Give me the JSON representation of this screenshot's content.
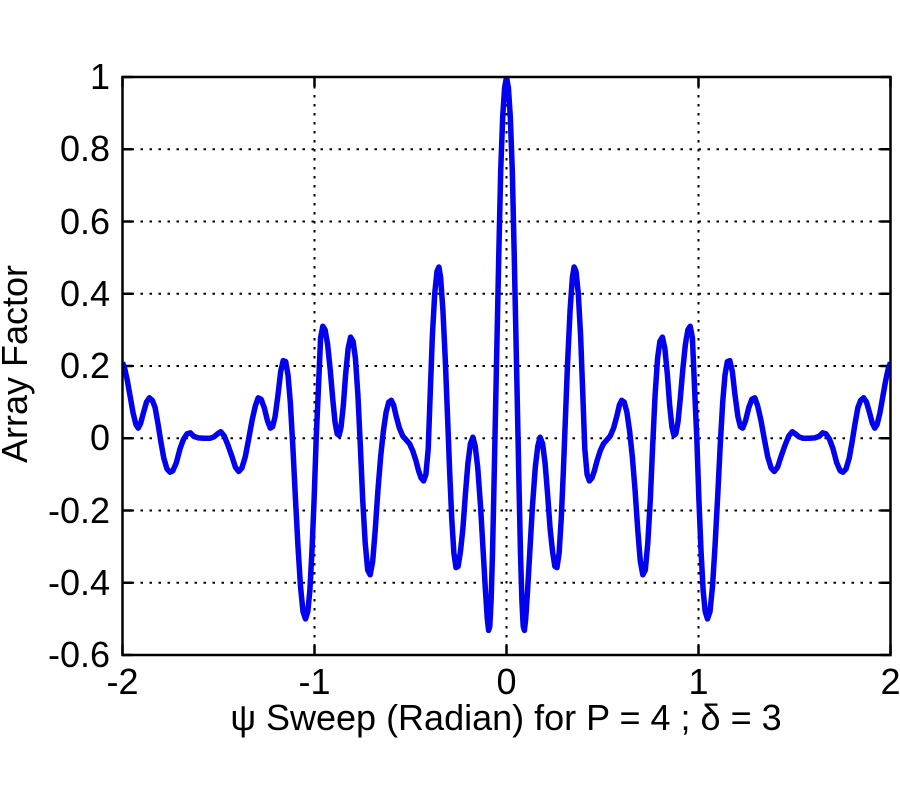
{
  "figure": {
    "background": "#ffffff",
    "frame_color": "#000000",
    "grid_style": "dotted",
    "grid_color": "#000000"
  },
  "chart_data": {
    "type": "line",
    "title": "",
    "xlabel": "ψ Sweep (Radian) for P = 4 ; δ = 3",
    "ylabel": "Array Factor",
    "parameters": {
      "P": "4",
      "delta": "3"
    },
    "xlim": [
      -2,
      2
    ],
    "ylim": [
      -0.6,
      1
    ],
    "x_tick_values": [
      -2,
      -1,
      0,
      1,
      2
    ],
    "x_tick_labels": [
      "-2",
      "-1",
      "0",
      "1",
      "2"
    ],
    "y_tick_values": [
      1,
      0.8,
      0.6,
      0.4,
      0.2,
      0,
      -0.2,
      -0.4,
      -0.6
    ],
    "y_tick_labels": [
      "1",
      "0.8",
      "0.6",
      "0.4",
      "0.2",
      "0",
      "-0.2",
      "-0.4",
      "-0.6"
    ],
    "grid": true,
    "legend": null,
    "series": [
      {
        "name": "array-factor",
        "color": "#0202ee",
        "points": [
          [
            -2.0,
            0.21
          ],
          [
            -1.988,
            0.192
          ],
          [
            -1.975,
            0.16
          ],
          [
            -1.96,
            0.115
          ],
          [
            -1.945,
            0.07
          ],
          [
            -1.93,
            0.038
          ],
          [
            -1.918,
            0.028
          ],
          [
            -1.905,
            0.042
          ],
          [
            -1.89,
            0.072
          ],
          [
            -1.875,
            0.1
          ],
          [
            -1.86,
            0.112
          ],
          [
            -1.845,
            0.105
          ],
          [
            -1.83,
            0.085
          ],
          [
            -1.815,
            0.04
          ],
          [
            -1.8,
            -0.01
          ],
          [
            -1.785,
            -0.055
          ],
          [
            -1.768,
            -0.085
          ],
          [
            -1.752,
            -0.094
          ],
          [
            -1.738,
            -0.09
          ],
          [
            -1.72,
            -0.068
          ],
          [
            -1.7,
            -0.028
          ],
          [
            -1.682,
            -0.002
          ],
          [
            -1.664,
            0.012
          ],
          [
            -1.647,
            0.015
          ],
          [
            -1.628,
            0.005
          ],
          [
            -1.605,
            0.001
          ],
          [
            -1.575,
            0.0
          ],
          [
            -1.545,
            0.0
          ],
          [
            -1.523,
            0.004
          ],
          [
            -1.505,
            0.012
          ],
          [
            -1.488,
            0.018
          ],
          [
            -1.47,
            0.006
          ],
          [
            -1.45,
            -0.02
          ],
          [
            -1.43,
            -0.05
          ],
          [
            -1.412,
            -0.08
          ],
          [
            -1.395,
            -0.092
          ],
          [
            -1.378,
            -0.082
          ],
          [
            -1.36,
            -0.05
          ],
          [
            -1.342,
            0.0
          ],
          [
            -1.325,
            0.05
          ],
          [
            -1.308,
            0.09
          ],
          [
            -1.293,
            0.112
          ],
          [
            -1.278,
            0.108
          ],
          [
            -1.262,
            0.085
          ],
          [
            -1.245,
            0.048
          ],
          [
            -1.23,
            0.028
          ],
          [
            -1.218,
            0.032
          ],
          [
            -1.205,
            0.06
          ],
          [
            -1.19,
            0.12
          ],
          [
            -1.176,
            0.185
          ],
          [
            -1.163,
            0.215
          ],
          [
            -1.15,
            0.212
          ],
          [
            -1.138,
            0.175
          ],
          [
            -1.126,
            0.1
          ],
          [
            -1.113,
            -0.02
          ],
          [
            -1.1,
            -0.16
          ],
          [
            -1.086,
            -0.3
          ],
          [
            -1.073,
            -0.41
          ],
          [
            -1.06,
            -0.48
          ],
          [
            -1.047,
            -0.5
          ],
          [
            -1.035,
            -0.48
          ],
          [
            -1.024,
            -0.42
          ],
          [
            -1.013,
            -0.31
          ],
          [
            -1.002,
            -0.17
          ],
          [
            -0.991,
            0.0
          ],
          [
            -0.98,
            0.13
          ],
          [
            -0.968,
            0.278
          ],
          [
            -0.957,
            0.31
          ],
          [
            -0.945,
            0.3
          ],
          [
            -0.932,
            0.26
          ],
          [
            -0.918,
            0.19
          ],
          [
            -0.905,
            0.11
          ],
          [
            -0.893,
            0.045
          ],
          [
            -0.882,
            0.012
          ],
          [
            -0.872,
            0.008
          ],
          [
            -0.862,
            0.03
          ],
          [
            -0.85,
            0.09
          ],
          [
            -0.838,
            0.175
          ],
          [
            -0.825,
            0.248
          ],
          [
            -0.812,
            0.28
          ],
          [
            -0.799,
            0.268
          ],
          [
            -0.787,
            0.222
          ],
          [
            -0.774,
            0.12
          ],
          [
            -0.761,
            -0.025
          ],
          [
            -0.749,
            -0.17
          ],
          [
            -0.736,
            -0.29
          ],
          [
            -0.723,
            -0.365
          ],
          [
            -0.71,
            -0.378
          ],
          [
            -0.697,
            -0.34
          ],
          [
            -0.684,
            -0.255
          ],
          [
            -0.67,
            -0.145
          ],
          [
            -0.655,
            -0.05
          ],
          [
            -0.641,
            0.02
          ],
          [
            -0.627,
            0.072
          ],
          [
            -0.613,
            0.1
          ],
          [
            -0.6,
            0.105
          ],
          [
            -0.588,
            0.092
          ],
          [
            -0.575,
            0.062
          ],
          [
            -0.558,
            0.028
          ],
          [
            -0.54,
            0.006
          ],
          [
            -0.522,
            -0.005
          ],
          [
            -0.505,
            -0.015
          ],
          [
            -0.488,
            -0.035
          ],
          [
            -0.472,
            -0.062
          ],
          [
            -0.458,
            -0.09
          ],
          [
            -0.445,
            -0.11
          ],
          [
            -0.432,
            -0.118
          ],
          [
            -0.42,
            -0.1
          ],
          [
            -0.408,
            -0.03
          ],
          [
            -0.397,
            0.13
          ],
          [
            -0.386,
            0.285
          ],
          [
            -0.374,
            0.4
          ],
          [
            -0.362,
            0.462
          ],
          [
            -0.352,
            0.474
          ],
          [
            -0.343,
            0.445
          ],
          [
            -0.331,
            0.355
          ],
          [
            -0.318,
            0.21
          ],
          [
            -0.307,
            0.055
          ],
          [
            -0.296,
            -0.095
          ],
          [
            -0.285,
            -0.225
          ],
          [
            -0.274,
            -0.318
          ],
          [
            -0.263,
            -0.358
          ],
          [
            -0.252,
            -0.355
          ],
          [
            -0.24,
            -0.315
          ],
          [
            -0.227,
            -0.25
          ],
          [
            -0.214,
            -0.155
          ],
          [
            -0.201,
            -0.07
          ],
          [
            -0.188,
            -0.015
          ],
          [
            -0.175,
            0.003
          ],
          [
            -0.163,
            -0.022
          ],
          [
            -0.15,
            -0.08
          ],
          [
            -0.135,
            -0.19
          ],
          [
            -0.122,
            -0.31
          ],
          [
            -0.11,
            -0.42
          ],
          [
            -0.1,
            -0.5
          ],
          [
            -0.093,
            -0.532
          ],
          [
            -0.087,
            -0.52
          ],
          [
            -0.08,
            -0.45
          ],
          [
            -0.073,
            -0.32
          ],
          [
            -0.065,
            -0.13
          ],
          [
            -0.058,
            0.06
          ],
          [
            -0.05,
            0.26
          ],
          [
            -0.04,
            0.51
          ],
          [
            -0.03,
            0.74
          ],
          [
            -0.02,
            0.89
          ],
          [
            -0.01,
            0.97
          ],
          [
            0.0,
            1.0
          ],
          [
            0.01,
            0.97
          ],
          [
            0.02,
            0.89
          ],
          [
            0.03,
            0.74
          ],
          [
            0.04,
            0.51
          ],
          [
            0.05,
            0.26
          ],
          [
            0.058,
            0.06
          ],
          [
            0.065,
            -0.13
          ],
          [
            0.073,
            -0.32
          ],
          [
            0.08,
            -0.45
          ],
          [
            0.087,
            -0.52
          ],
          [
            0.093,
            -0.532
          ],
          [
            0.1,
            -0.5
          ],
          [
            0.11,
            -0.42
          ],
          [
            0.122,
            -0.31
          ],
          [
            0.135,
            -0.19
          ],
          [
            0.15,
            -0.08
          ],
          [
            0.163,
            -0.022
          ],
          [
            0.175,
            0.003
          ],
          [
            0.188,
            -0.015
          ],
          [
            0.201,
            -0.07
          ],
          [
            0.214,
            -0.155
          ],
          [
            0.227,
            -0.25
          ],
          [
            0.24,
            -0.315
          ],
          [
            0.252,
            -0.355
          ],
          [
            0.263,
            -0.358
          ],
          [
            0.274,
            -0.318
          ],
          [
            0.285,
            -0.225
          ],
          [
            0.296,
            -0.095
          ],
          [
            0.307,
            0.055
          ],
          [
            0.318,
            0.21
          ],
          [
            0.331,
            0.355
          ],
          [
            0.343,
            0.445
          ],
          [
            0.352,
            0.474
          ],
          [
            0.362,
            0.462
          ],
          [
            0.374,
            0.4
          ],
          [
            0.386,
            0.285
          ],
          [
            0.397,
            0.13
          ],
          [
            0.408,
            -0.03
          ],
          [
            0.42,
            -0.1
          ],
          [
            0.432,
            -0.118
          ],
          [
            0.445,
            -0.11
          ],
          [
            0.458,
            -0.09
          ],
          [
            0.472,
            -0.062
          ],
          [
            0.488,
            -0.035
          ],
          [
            0.505,
            -0.015
          ],
          [
            0.522,
            -0.005
          ],
          [
            0.54,
            0.006
          ],
          [
            0.558,
            0.028
          ],
          [
            0.575,
            0.062
          ],
          [
            0.588,
            0.092
          ],
          [
            0.6,
            0.105
          ],
          [
            0.613,
            0.1
          ],
          [
            0.627,
            0.072
          ],
          [
            0.641,
            0.02
          ],
          [
            0.655,
            -0.05
          ],
          [
            0.67,
            -0.145
          ],
          [
            0.684,
            -0.255
          ],
          [
            0.697,
            -0.34
          ],
          [
            0.71,
            -0.378
          ],
          [
            0.723,
            -0.365
          ],
          [
            0.736,
            -0.29
          ],
          [
            0.749,
            -0.17
          ],
          [
            0.761,
            -0.025
          ],
          [
            0.774,
            0.12
          ],
          [
            0.787,
            0.222
          ],
          [
            0.799,
            0.268
          ],
          [
            0.812,
            0.28
          ],
          [
            0.825,
            0.248
          ],
          [
            0.838,
            0.175
          ],
          [
            0.85,
            0.09
          ],
          [
            0.862,
            0.03
          ],
          [
            0.872,
            0.008
          ],
          [
            0.882,
            0.012
          ],
          [
            0.893,
            0.045
          ],
          [
            0.905,
            0.11
          ],
          [
            0.918,
            0.19
          ],
          [
            0.932,
            0.26
          ],
          [
            0.945,
            0.3
          ],
          [
            0.957,
            0.31
          ],
          [
            0.968,
            0.278
          ],
          [
            0.98,
            0.13
          ],
          [
            0.991,
            0.0
          ],
          [
            1.002,
            -0.17
          ],
          [
            1.013,
            -0.31
          ],
          [
            1.024,
            -0.42
          ],
          [
            1.035,
            -0.48
          ],
          [
            1.047,
            -0.5
          ],
          [
            1.06,
            -0.48
          ],
          [
            1.073,
            -0.41
          ],
          [
            1.086,
            -0.3
          ],
          [
            1.1,
            -0.16
          ],
          [
            1.113,
            -0.02
          ],
          [
            1.126,
            0.1
          ],
          [
            1.138,
            0.175
          ],
          [
            1.15,
            0.212
          ],
          [
            1.163,
            0.215
          ],
          [
            1.176,
            0.185
          ],
          [
            1.19,
            0.12
          ],
          [
            1.205,
            0.06
          ],
          [
            1.218,
            0.032
          ],
          [
            1.23,
            0.028
          ],
          [
            1.245,
            0.048
          ],
          [
            1.262,
            0.085
          ],
          [
            1.278,
            0.108
          ],
          [
            1.293,
            0.112
          ],
          [
            1.308,
            0.09
          ],
          [
            1.325,
            0.05
          ],
          [
            1.342,
            0.0
          ],
          [
            1.36,
            -0.05
          ],
          [
            1.378,
            -0.082
          ],
          [
            1.395,
            -0.092
          ],
          [
            1.412,
            -0.08
          ],
          [
            1.43,
            -0.05
          ],
          [
            1.45,
            -0.02
          ],
          [
            1.47,
            0.006
          ],
          [
            1.488,
            0.018
          ],
          [
            1.505,
            0.012
          ],
          [
            1.523,
            0.004
          ],
          [
            1.545,
            0.0
          ],
          [
            1.575,
            0.0
          ],
          [
            1.605,
            0.001
          ],
          [
            1.628,
            0.005
          ],
          [
            1.647,
            0.015
          ],
          [
            1.664,
            0.012
          ],
          [
            1.682,
            -0.002
          ],
          [
            1.7,
            -0.028
          ],
          [
            1.72,
            -0.068
          ],
          [
            1.738,
            -0.09
          ],
          [
            1.752,
            -0.094
          ],
          [
            1.768,
            -0.085
          ],
          [
            1.785,
            -0.055
          ],
          [
            1.8,
            -0.01
          ],
          [
            1.815,
            0.04
          ],
          [
            1.83,
            0.085
          ],
          [
            1.845,
            0.105
          ],
          [
            1.86,
            0.112
          ],
          [
            1.875,
            0.1
          ],
          [
            1.89,
            0.072
          ],
          [
            1.905,
            0.042
          ],
          [
            1.918,
            0.028
          ],
          [
            1.93,
            0.038
          ],
          [
            1.945,
            0.07
          ],
          [
            1.96,
            0.115
          ],
          [
            1.975,
            0.16
          ],
          [
            1.988,
            0.192
          ],
          [
            2.0,
            0.21
          ]
        ]
      }
    ]
  }
}
